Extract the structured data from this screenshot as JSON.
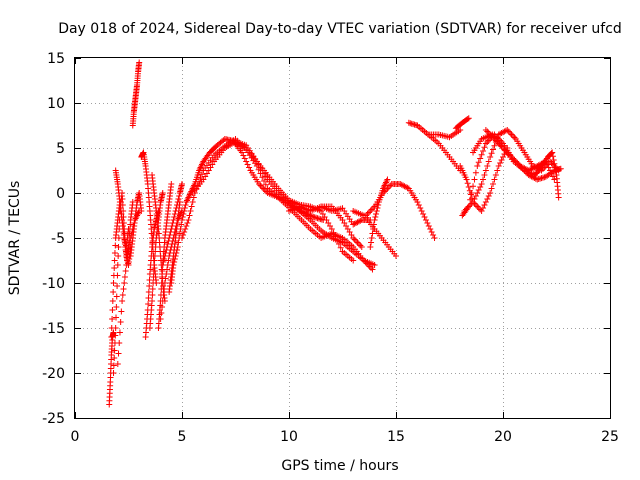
{
  "chart_data": {
    "type": "scatter",
    "title": "Day 018 of 2024, Sidereal Day-to-day VTEC variation (SDTVAR) for receiver ufcd",
    "xlabel": "GPS time / hours",
    "ylabel": "SDTVAR / TECUs",
    "xlim": [
      0,
      25
    ],
    "ylim": [
      -25,
      15
    ],
    "xticks": [
      0,
      5,
      10,
      15,
      20,
      25
    ],
    "yticks": [
      -25,
      -20,
      -15,
      -10,
      -5,
      0,
      5,
      10,
      15
    ],
    "grid": true,
    "marker": "+",
    "color": "#ff0000",
    "series": [
      {
        "name": "s1",
        "x": [
          1.6,
          1.65,
          1.7,
          1.75,
          1.8
        ],
        "y": [
          -23.5,
          -21,
          -18,
          -16,
          -15.5
        ]
      },
      {
        "name": "s2",
        "x": [
          1.7,
          1.8,
          1.9,
          2.0,
          2.1,
          2.2,
          2.3,
          2.4,
          2.5
        ],
        "y": [
          -16,
          -10,
          -5,
          -3,
          -1,
          -3,
          -5,
          -6,
          -4
        ]
      },
      {
        "name": "s3",
        "x": [
          1.8,
          1.9,
          2.0,
          2.1,
          2.2,
          2.3,
          2.4,
          2.5,
          2.6
        ],
        "y": [
          -20,
          -15,
          -8,
          -2,
          0,
          -4,
          -7,
          -8,
          -6
        ]
      },
      {
        "name": "s4",
        "x": [
          1.9,
          2.0,
          2.1,
          2.2,
          2.3,
          2.4,
          2.5,
          2.6,
          2.7
        ],
        "y": [
          2.5,
          1,
          -1,
          -3,
          -5,
          -7,
          -6,
          -3,
          -1
        ]
      },
      {
        "name": "s5",
        "x": [
          2.0,
          2.2,
          2.4,
          2.6,
          2.8,
          3.0
        ],
        "y": [
          -19,
          -12,
          -8,
          -5,
          -3,
          -2
        ]
      },
      {
        "name": "s6",
        "x": [
          2.7,
          2.75,
          2.8,
          2.85,
          2.9,
          2.95,
          3.0
        ],
        "y": [
          7.5,
          9,
          10,
          11,
          12,
          13.5,
          14.5
        ]
      },
      {
        "name": "s7",
        "x": [
          2.6,
          2.7,
          2.8,
          2.9,
          3.0,
          3.1
        ],
        "y": [
          -7,
          -5,
          -3,
          -1,
          0,
          -2
        ]
      },
      {
        "name": "s8",
        "x": [
          3.1,
          3.2,
          3.3,
          3.4,
          3.5,
          3.6,
          3.7,
          3.8
        ],
        "y": [
          4,
          4.5,
          3,
          1,
          -2,
          -5,
          -8,
          -10
        ]
      },
      {
        "name": "s9",
        "x": [
          3.3,
          3.4,
          3.5,
          3.6,
          3.7,
          3.8,
          3.9
        ],
        "y": [
          -16,
          -13,
          -9,
          -6,
          -4,
          -3,
          -2
        ]
      },
      {
        "name": "s10",
        "x": [
          3.5,
          3.6,
          3.7,
          3.8,
          3.9,
          4.0,
          4.1
        ],
        "y": [
          -15,
          -12,
          -8,
          -5,
          -3,
          -1,
          0
        ]
      },
      {
        "name": "s11",
        "x": [
          3.6,
          3.7,
          3.8,
          3.9,
          4.0,
          4.1,
          4.2
        ],
        "y": [
          2,
          0,
          -2,
          -4,
          -7,
          -10,
          -12
        ]
      },
      {
        "name": "s12",
        "x": [
          3.9,
          4.0,
          4.1,
          4.2,
          4.3,
          4.4,
          4.5
        ],
        "y": [
          -15,
          -12,
          -8,
          -5,
          -3,
          -1,
          1
        ]
      },
      {
        "name": "s13",
        "x": [
          4.0,
          4.2,
          4.4,
          4.6,
          4.8,
          5.0
        ],
        "y": [
          -14,
          -10,
          -7,
          -5,
          -3,
          -2
        ]
      },
      {
        "name": "s14",
        "x": [
          4.1,
          4.3,
          4.5,
          4.7,
          4.9,
          5.0
        ],
        "y": [
          -8,
          -6,
          -4,
          -2,
          0,
          1
        ]
      },
      {
        "name": "s15",
        "x": [
          4.4,
          4.5,
          4.6,
          4.7,
          4.8,
          4.9
        ],
        "y": [
          -11,
          -9,
          -7,
          -5,
          -3,
          -1
        ]
      },
      {
        "name": "s16",
        "x": [
          4.5,
          4.6,
          4.8,
          5.0,
          5.2,
          5.4,
          5.6,
          5.8,
          6.0,
          6.3,
          6.6,
          7.0,
          7.4,
          7.8,
          8.2,
          8.6,
          9.0,
          9.5,
          10.0,
          10.4,
          10.8,
          11.2,
          11.6
        ],
        "y": [
          -10,
          -8,
          -6,
          -3,
          -1,
          0,
          1,
          2.5,
          3.5,
          4.5,
          5.2,
          6,
          5.8,
          4.5,
          2.5,
          1,
          0,
          -0.5,
          -1.2,
          -1.8,
          -2.3,
          -2.7,
          -3
        ]
      },
      {
        "name": "s17",
        "x": [
          5.0,
          5.3,
          5.6,
          6.0,
          6.5,
          7.0,
          7.5,
          8.0,
          8.5,
          9.0,
          9.5,
          10.0,
          10.5,
          11.0,
          11.5,
          12.0,
          12.5,
          13.0,
          13.5,
          13.9
        ],
        "y": [
          -5,
          -3,
          0,
          2.5,
          4.2,
          5.2,
          6,
          4.8,
          3,
          0.5,
          -0.5,
          -1.6,
          -2.8,
          -4,
          -5,
          -4.5,
          -5,
          -6,
          -7.5,
          -8.5
        ]
      },
      {
        "name": "s18",
        "x": [
          5.5,
          6.0,
          6.5,
          7.0,
          7.5,
          8.0,
          8.5,
          9.0,
          9.5,
          10.0,
          10.5,
          11.0,
          11.5,
          12.0,
          12.5,
          13.0,
          13.5,
          14.0
        ],
        "y": [
          0,
          1.5,
          3.5,
          5,
          5.7,
          5.3,
          3.5,
          1.5,
          0,
          -1,
          -2,
          -3,
          -4.2,
          -5,
          -5.5,
          -6.5,
          -7.5,
          -8
        ]
      },
      {
        "name": "s19",
        "x": [
          7.5,
          8.0,
          8.5,
          9.0,
          9.5,
          10.0,
          10.5,
          11.0,
          11.5,
          12.0,
          12.5,
          13.0
        ],
        "y": [
          5.5,
          5,
          3.5,
          2,
          0.5,
          -0.8,
          -1.3,
          -1.5,
          -2,
          -4,
          -6.5,
          -7.5
        ]
      },
      {
        "name": "s20",
        "x": [
          10.0,
          10.5,
          11.0,
          11.5,
          12.0,
          12.5,
          13.0,
          13.4
        ],
        "y": [
          -2,
          -1.5,
          -2,
          -1.5,
          -1.5,
          -3,
          -5,
          -6
        ]
      },
      {
        "name": "s21",
        "x": [
          11.5,
          12.0,
          12.5,
          13.0,
          13.4,
          13.8
        ],
        "y": [
          -1.5,
          -2,
          -1.7,
          -3.5,
          -3,
          -3
        ]
      },
      {
        "name": "s22",
        "x": [
          13.0,
          13.5,
          14.0,
          14.5,
          15.0
        ],
        "y": [
          -2,
          -2.5,
          -4,
          -5.5,
          -7
        ]
      },
      {
        "name": "s23",
        "x": [
          13.6,
          14.0,
          14.4,
          14.8,
          15.2,
          15.6,
          16.0,
          16.4,
          16.8
        ],
        "y": [
          -2.5,
          -1.5,
          0,
          1,
          1,
          0.5,
          -1,
          -3,
          -5
        ]
      },
      {
        "name": "s24",
        "x": [
          13.8,
          14.0,
          14.2,
          14.4,
          14.6
        ],
        "y": [
          -6,
          -3,
          -1,
          0.5,
          1.5
        ]
      },
      {
        "name": "s25",
        "x": [
          15.6,
          16.0,
          16.5,
          17.0,
          17.5,
          18.0
        ],
        "y": [
          7.8,
          7.5,
          6.5,
          6.5,
          6.2,
          7
        ]
      },
      {
        "name": "s26",
        "x": [
          16.0,
          16.5,
          17.0,
          17.5,
          18.0
        ],
        "y": [
          7.5,
          6.5,
          5.5,
          4,
          2.5
        ]
      },
      {
        "name": "s27",
        "x": [
          17.8,
          18.1,
          18.4
        ],
        "y": [
          7.2,
          7.8,
          8.3
        ]
      },
      {
        "name": "s28",
        "x": [
          18.0,
          18.3,
          18.6,
          19.0,
          19.4,
          19.8,
          20.2
        ],
        "y": [
          3,
          1.5,
          -1,
          -2,
          0,
          3,
          5
        ]
      },
      {
        "name": "s29",
        "x": [
          18.1,
          18.4,
          18.8,
          19.2,
          19.6,
          20.0,
          20.4,
          20.8,
          21.2,
          21.6,
          22.0,
          22.4
        ],
        "y": [
          -2.5,
          -1.5,
          3,
          5.5,
          6.5,
          5.5,
          4,
          3,
          2.5,
          3,
          3.5,
          1.5
        ]
      },
      {
        "name": "s30",
        "x": [
          18.2,
          18.6,
          19.0,
          19.4,
          19.8,
          20.2,
          20.6,
          21.0,
          21.4,
          21.8,
          22.2,
          22.6
        ],
        "y": [
          -2,
          -1,
          1,
          4,
          6.5,
          7,
          6,
          4.5,
          3,
          2.5,
          3.5,
          2.5
        ]
      },
      {
        "name": "s31",
        "x": [
          19.2,
          19.6,
          20.0,
          20.4,
          20.8,
          21.2,
          21.6,
          22.0,
          22.4,
          22.7
        ],
        "y": [
          7,
          6,
          5,
          4,
          3,
          2,
          1.5,
          1.8,
          2.5,
          2.7
        ]
      },
      {
        "name": "s32",
        "x": [
          18.6,
          19.0,
          19.5,
          20.0,
          20.5,
          21.0,
          21.5,
          22.0
        ],
        "y": [
          4.5,
          6,
          6.5,
          5,
          3.5,
          2.5,
          2,
          3.5
        ]
      },
      {
        "name": "s33",
        "x": [
          21.5,
          21.8,
          22.1,
          22.3,
          22.5,
          22.6
        ],
        "y": [
          2,
          3,
          4,
          4.5,
          2,
          -0.5
        ]
      }
    ]
  }
}
